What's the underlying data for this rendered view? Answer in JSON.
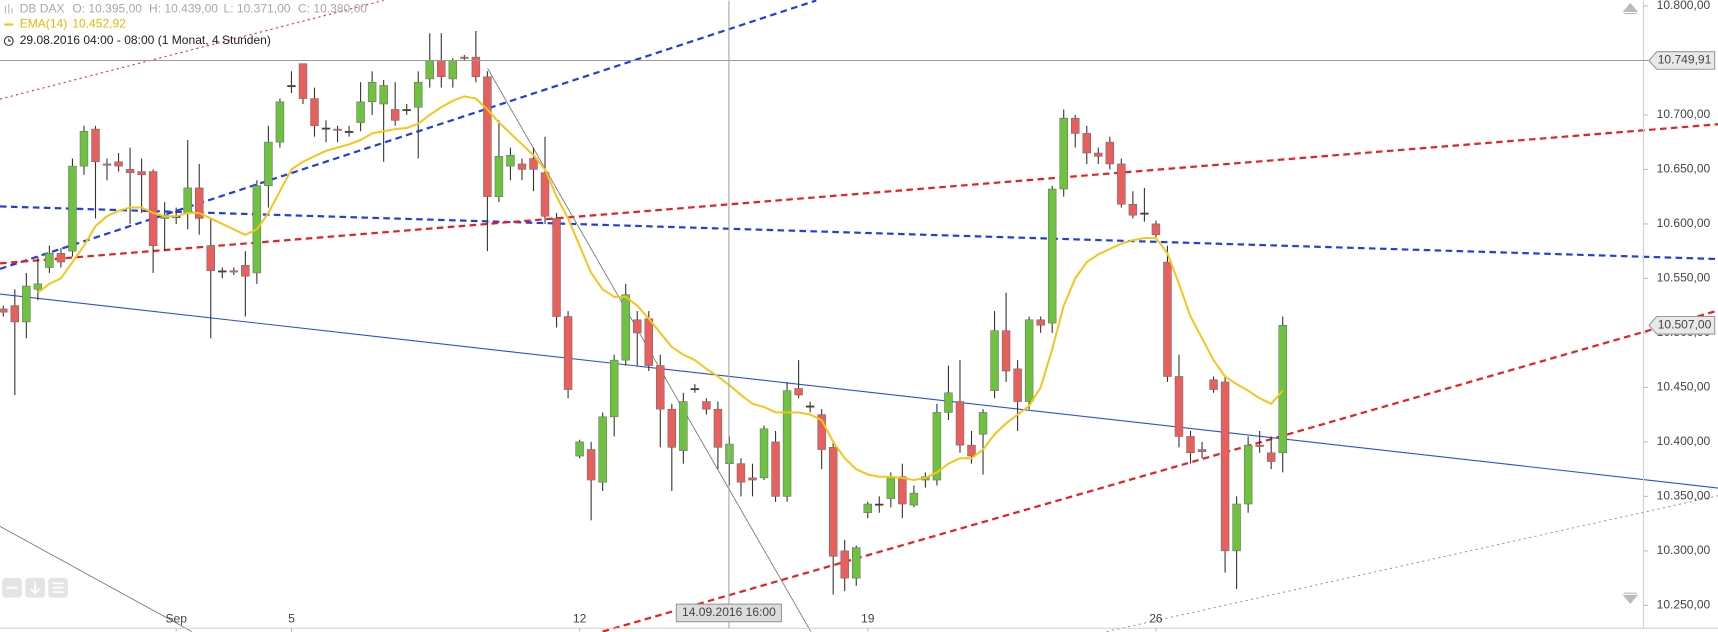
{
  "chart_data": {
    "type": "candlestick",
    "header": {
      "symbol": "DB DAX",
      "open": "O: 10.395,00",
      "high": "H: 10.439,00",
      "low": "L: 10.371,00",
      "close": "C: 10.380,00",
      "ema_name": "EMA(14)",
      "ema_value": "10.452,92",
      "period": "29.08.2016 04:00 - 08:00 (1 Monat, 4 Stunden)"
    },
    "categories": [
      null,
      null,
      null,
      null,
      null,
      null,
      null,
      null,
      null,
      null,
      null,
      null,
      null,
      null,
      null,
      "Sep",
      null,
      null,
      null,
      null,
      null,
      null,
      null,
      null,
      null,
      "5",
      null,
      null,
      null,
      null,
      null,
      null,
      null,
      null,
      null,
      null,
      null,
      null,
      null,
      null,
      null,
      null,
      null,
      null,
      null,
      null,
      null,
      null,
      null,
      null,
      "12",
      null,
      null,
      null,
      null,
      null,
      null,
      null,
      null,
      null,
      null,
      null,
      null,
      null,
      null,
      null,
      null,
      null,
      null,
      null,
      null,
      null,
      null,
      null,
      null,
      "19",
      null,
      null,
      null,
      null,
      null,
      null,
      null,
      null,
      null,
      null,
      null,
      null,
      null,
      null,
      null,
      null,
      null,
      null,
      null,
      null,
      null,
      null,
      null,
      null,
      "26",
      null,
      null,
      null,
      null,
      null,
      null,
      null,
      null,
      null,
      null,
      null
    ],
    "series": [
      {
        "name": "DB DAX",
        "type": "candlestick",
        "up_color": "#6fc23f",
        "down_color": "#e8605e",
        "open": [
          10522,
          10525,
          10510,
          10540,
          10560,
          10573,
          10575,
          10653,
          10687,
          10655,
          10657,
          10650,
          10648,
          10648,
          10605,
          10607,
          10610,
          10633,
          10580,
          10557,
          10557,
          10562,
          10555,
          10635,
          10675,
          10727,
          10747,
          10715,
          10688,
          10687,
          10685,
          10693,
          10712,
          10710,
          10705,
          10705,
          10707,
          10733,
          10750,
          10733,
          10753,
          10753,
          10735,
          10625,
          10653,
          10655,
          10660,
          10647,
          10605,
          10515,
          10387,
          10393,
          10363,
          10423,
          10475,
          10512,
          10513,
          10470,
          10430,
          10392,
          10449,
          10437,
          10430,
          10380,
          10380,
          10367,
          10367,
          10400,
          10350,
          10449,
          10433,
          10425,
          10395,
          10300,
          10275,
          10335,
          10343,
          10348,
          10368,
          10342,
          10365,
          10365,
          10427,
          10437,
          10397,
          10407,
          10447,
          10502,
          10467,
          10437,
          10512,
          10509,
          10632,
          10697,
          10683,
          10665,
          10675,
          10655,
          10618,
          10610,
          10600,
          10565,
          10460,
          10405,
          10393,
          10457,
          10455,
          10300,
          10343,
          10397,
          10390,
          10390
        ],
        "high": [
          10525,
          10540,
          10555,
          10570,
          10580,
          10578,
          10660,
          10690,
          10690,
          10660,
          10665,
          10670,
          10660,
          10650,
          10620,
          10615,
          10677,
          10655,
          10605,
          10560,
          10560,
          10575,
          10640,
          10690,
          10715,
          10740,
          10747,
          10725,
          10695,
          10690,
          10690,
          10730,
          10740,
          10732,
          10730,
          10710,
          10740,
          10775,
          10775,
          10752,
          10755,
          10777,
          10740,
          10695,
          10670,
          10660,
          10670,
          10680,
          10610,
          10520,
          10402,
          10400,
          10427,
          10480,
          10545,
          10520,
          10520,
          10480,
          10435,
          10445,
          10453,
          10440,
          10437,
          10405,
          10385,
          10380,
          10415,
          10410,
          10455,
          10475,
          10437,
          10430,
          10400,
          10310,
          10305,
          10345,
          10350,
          10372,
          10380,
          10360,
          10372,
          10435,
          10470,
          10475,
          10410,
          10430,
          10520,
          10537,
          10475,
          10515,
          10515,
          10635,
          10705,
          10700,
          10690,
          10670,
          10680,
          10660,
          10630,
          10633,
          10603,
          10580,
          10480,
          10410,
          10400,
          10460,
          10460,
          10350,
          10405,
          10410,
          10405,
          10515
        ],
        "low": [
          10515,
          10443,
          10495,
          10530,
          10555,
          10560,
          10570,
          10645,
          10605,
          10640,
          10648,
          10600,
          10610,
          10555,
          10575,
          10600,
          10595,
          10590,
          10495,
          10550,
          10553,
          10515,
          10545,
          10615,
          10670,
          10720,
          10710,
          10680,
          10675,
          10675,
          10680,
          10685,
          10700,
          10657,
          10690,
          10700,
          10660,
          10725,
          10725,
          10725,
          10750,
          10730,
          10575,
          10620,
          10640,
          10640,
          10630,
          10600,
          10505,
          10440,
          10385,
          10328,
          10355,
          10405,
          10470,
          10470,
          10465,
          10395,
          10355,
          10380,
          10445,
          10425,
          10375,
          10360,
          10350,
          10350,
          10365,
          10345,
          10345,
          10440,
          10427,
          10375,
          10260,
          10263,
          10268,
          10330,
          10335,
          10340,
          10330,
          10340,
          10358,
          10360,
          10420,
          10390,
          10380,
          10370,
          10440,
          10455,
          10410,
          10430,
          10500,
          10500,
          10625,
          10670,
          10655,
          10655,
          10650,
          10615,
          10605,
          10602,
          10588,
          10455,
          10395,
          10380,
          10385,
          10445,
          10280,
          10265,
          10335,
          10390,
          10375,
          10372
        ],
        "close": [
          10519,
          10510,
          10543,
          10545,
          10573,
          10565,
          10653,
          10685,
          10657,
          10654,
          10653,
          10647,
          10645,
          10580,
          10608,
          10607,
          10633,
          10605,
          10557,
          10557,
          10556,
          10552,
          10635,
          10675,
          10712,
          10727,
          10715,
          10690,
          10688,
          10686,
          10685,
          10712,
          10730,
          10727,
          10695,
          10705,
          10730,
          10750,
          10735,
          10750,
          10752,
          10735,
          10625,
          10662,
          10663,
          10650,
          10650,
          10607,
          10515,
          10448,
          10400,
          10365,
          10423,
          10475,
          10535,
          10500,
          10470,
          10430,
          10395,
          10437,
          10449,
          10430,
          10395,
          10398,
          10363,
          10365,
          10412,
          10350,
          10447,
          10443,
          10433,
          10393,
          10295,
          10275,
          10303,
          10343,
          10343,
          10368,
          10343,
          10353,
          10368,
          10427,
          10445,
          10397,
          10387,
          10427,
          10502,
          10465,
          10437,
          10512,
          10507,
          10632,
          10697,
          10683,
          10665,
          10662,
          10655,
          10618,
          10608,
          10610,
          10590,
          10460,
          10405,
          10390,
          10391,
          10448,
          10300,
          10343,
          10397,
          10396,
          10382,
          10507
        ]
      },
      {
        "name": "EMA(14)",
        "type": "line",
        "color": "#f5c518",
        "values": [
          null,
          null,
          null,
          10537,
          10545,
          10550,
          10565,
          10580,
          10598,
          10607,
          10612,
          10615,
          10615,
          10610,
          10607,
          10607,
          10610,
          10610,
          10605,
          10600,
          10595,
          10590,
          10595,
          10610,
          10630,
          10650,
          10657,
          10662,
          10667,
          10670,
          10673,
          10677,
          10683,
          10685,
          10687,
          10688,
          10692,
          10700,
          10707,
          10713,
          10717,
          10715,
          10705,
          10693,
          10683,
          10673,
          10663,
          10650,
          10625,
          10605,
          10580,
          10555,
          10540,
          10533,
          10533,
          10525,
          10513,
          10500,
          10487,
          10480,
          10475,
          10467,
          10460,
          10452,
          10443,
          10435,
          10432,
          10427,
          10427,
          10427,
          10425,
          10420,
          10400,
          10385,
          10375,
          10370,
          10368,
          10368,
          10367,
          10365,
          10367,
          10372,
          10380,
          10385,
          10385,
          10393,
          10407,
          10417,
          10425,
          10433,
          10450,
          10485,
          10525,
          10550,
          10565,
          10572,
          10577,
          10582,
          10585,
          10587,
          10587,
          10573,
          10545,
          10515,
          10495,
          10475,
          10460,
          10453,
          10447,
          10440,
          10435,
          10447
        ]
      }
    ],
    "ylim": [
      10229,
      10805
    ],
    "yticks": [
      {
        "value": 10250,
        "label": "10.250,00"
      },
      {
        "value": 10300,
        "label": "10.300,00"
      },
      {
        "value": 10350,
        "label": "10.350,00"
      },
      {
        "value": 10400,
        "label": "10.400,00"
      },
      {
        "value": 10450,
        "label": "10.450,00"
      },
      {
        "value": 10500,
        "label": "10.500,00"
      },
      {
        "value": 10550,
        "label": "10.550,00"
      },
      {
        "value": 10600,
        "label": "10.600,00"
      },
      {
        "value": 10650,
        "label": "10.650,00"
      },
      {
        "value": 10700,
        "label": "10.700,00"
      },
      {
        "value": 10750,
        "label": "10.750,00"
      },
      {
        "value": 10800,
        "label": "10.800,00"
      }
    ],
    "grid": false,
    "crosshair": {
      "y": {
        "value": 10749.91,
        "label": "10.749,91"
      },
      "x_label": "14.09.2016 16:00"
    },
    "last_price": {
      "value": 10507,
      "label": "10.507,00"
    }
  }
}
